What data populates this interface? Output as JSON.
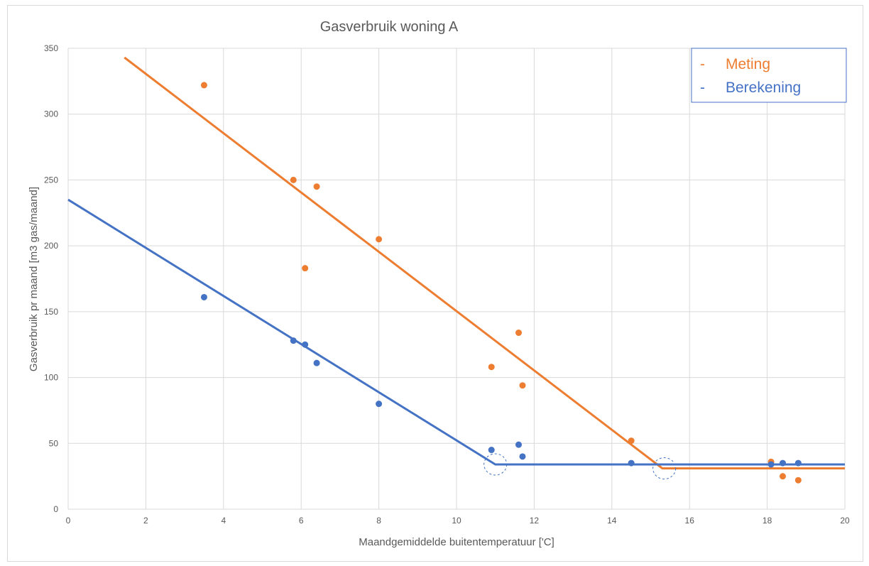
{
  "chart_data": {
    "type": "scatter",
    "title": "Gasverbruik woning A",
    "xlabel": "Maandgemiddelde buitentemperatuur ['C]",
    "ylabel": "Gasverbruik pr maand [m3 gas/maand]",
    "xlim": [
      0,
      20
    ],
    "ylim": [
      0,
      350
    ],
    "x_ticks": [
      0,
      2,
      4,
      6,
      8,
      10,
      12,
      14,
      16,
      18,
      20
    ],
    "y_ticks": [
      0,
      50,
      100,
      150,
      200,
      250,
      300,
      350
    ],
    "grid": true,
    "legend": {
      "placement": "top-right",
      "entries": [
        {
          "marker": "-",
          "name": "Meting",
          "color": "#ed7d31"
        },
        {
          "marker": "-",
          "name": "Berekening",
          "color": "#4472c4"
        }
      ]
    },
    "series": [
      {
        "name": "Meting",
        "color": "#ed7d31",
        "points": [
          [
            3.5,
            322
          ],
          [
            5.8,
            250
          ],
          [
            6.1,
            183
          ],
          [
            6.4,
            245
          ],
          [
            8.0,
            205
          ],
          [
            10.9,
            108
          ],
          [
            11.6,
            134
          ],
          [
            11.7,
            94
          ],
          [
            14.5,
            52
          ],
          [
            18.1,
            36
          ],
          [
            18.4,
            25
          ],
          [
            18.8,
            22
          ]
        ],
        "trend_line": [
          [
            1.45,
            343
          ],
          [
            15.3,
            31
          ],
          [
            20,
            31
          ]
        ]
      },
      {
        "name": "Berekening",
        "color": "#4472c4",
        "points": [
          [
            3.5,
            161
          ],
          [
            5.8,
            128
          ],
          [
            6.1,
            125
          ],
          [
            6.4,
            111
          ],
          [
            8.0,
            80
          ],
          [
            10.9,
            45
          ],
          [
            11.6,
            49
          ],
          [
            11.7,
            40
          ],
          [
            14.5,
            35
          ],
          [
            18.1,
            34
          ],
          [
            18.4,
            35
          ],
          [
            18.8,
            35
          ]
        ],
        "trend_line": [
          [
            0,
            235
          ],
          [
            11.0,
            34
          ],
          [
            20,
            34
          ]
        ]
      }
    ],
    "annotations": [
      {
        "type": "dashed-circle",
        "x": 11.0,
        "y": 34,
        "color": "#4472c4"
      },
      {
        "type": "dashed-circle",
        "x": 15.35,
        "y": 31,
        "color": "#4472c4"
      }
    ]
  }
}
